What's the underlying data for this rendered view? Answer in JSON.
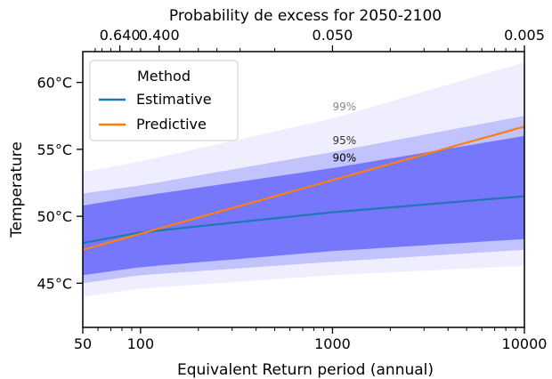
{
  "chart_data": {
    "type": "line",
    "title": "Probability de excess for 2050-2100",
    "xlabel": "Equivalent Return period (annual)",
    "ylabel": "Temperature",
    "x_scale": "log",
    "xlim": [
      50,
      10000
    ],
    "ylim": [
      41.7,
      62.3
    ],
    "grid": false,
    "x_ticks": [
      {
        "value": 50,
        "label": "50"
      },
      {
        "value": 100,
        "label": "100"
      },
      {
        "value": 1000,
        "label": "1000"
      },
      {
        "value": 10000,
        "label": "10000"
      }
    ],
    "y_ticks": [
      {
        "value": 45,
        "label": "45°C"
      },
      {
        "value": 50,
        "label": "50°C"
      },
      {
        "value": 55,
        "label": "55°C"
      },
      {
        "value": 60,
        "label": "60°C"
      }
    ],
    "top_axis": {
      "ticks": [
        {
          "value": 78,
          "label": "0.640"
        },
        {
          "value": 125,
          "label": "0.400"
        },
        {
          "value": 1000,
          "label": "0.050"
        },
        {
          "value": 10000,
          "label": "0.005"
        }
      ]
    },
    "legend": {
      "title": "Method",
      "placement": "top-left",
      "entries": [
        {
          "label": "Estimative",
          "color": "#1f77b4"
        },
        {
          "label": "Predictive",
          "color": "#ff7f0e"
        }
      ]
    },
    "series": [
      {
        "name": "Estimative",
        "color": "#1f77b4",
        "x": [
          50,
          100,
          1000,
          10000
        ],
        "y": [
          48.0,
          48.8,
          50.3,
          51.5
        ]
      },
      {
        "name": "Predictive",
        "color": "#ff7f0e",
        "x": [
          50,
          10000
        ],
        "y": [
          47.5,
          56.7
        ]
      }
    ],
    "bands": [
      {
        "label": "99%",
        "color": "#eeeefe",
        "label_color": "#888888",
        "label_at": [
          1000,
          57.9
        ],
        "x": [
          50,
          100,
          1000,
          10000
        ],
        "lower": [
          44.0,
          44.6,
          45.6,
          46.3
        ],
        "upper": [
          53.3,
          54.1,
          57.3,
          61.5
        ]
      },
      {
        "label": "95%",
        "color": "#c2c2fc",
        "label_color": "#333333",
        "label_at": [
          1000,
          55.4
        ],
        "x": [
          50,
          100,
          1000,
          10000
        ],
        "lower": [
          45.0,
          45.6,
          46.6,
          47.5
        ],
        "upper": [
          51.7,
          52.3,
          54.8,
          57.5
        ]
      },
      {
        "label": "90%",
        "color": "#7777fb",
        "label_color": "#000000",
        "label_at": [
          1000,
          54.1
        ],
        "x": [
          50,
          100,
          1000,
          10000
        ],
        "lower": [
          45.6,
          46.2,
          47.4,
          48.3
        ],
        "upper": [
          50.8,
          51.5,
          53.6,
          56.0
        ]
      }
    ]
  }
}
